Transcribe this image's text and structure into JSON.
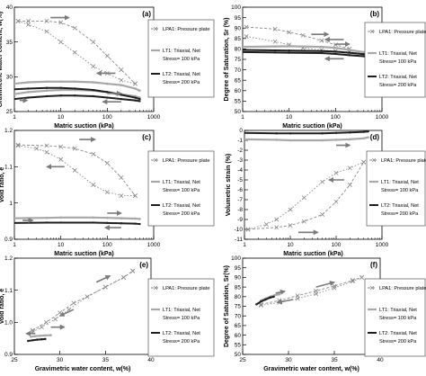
{
  "colors": {
    "lpa1": "#8a8a8a",
    "lt1": "#a8a8a8",
    "lt2": "#1e1e1e",
    "arrow": "#7a7a7a",
    "axis": "#000000",
    "box": "#555555"
  },
  "legend": {
    "lpa1": "LPA1: Pressure plate",
    "lt1_l1": "LT1: Triaxial, Net",
    "lt1_l2": "Stress= 100 kPa",
    "lt2_l1": "LT2: Triaxial, Net",
    "lt2_l2": "Stress= 200 kPa"
  },
  "chart_data": [
    {
      "panel": "(a)",
      "type": "line",
      "xscale": "log",
      "xlim": [
        1,
        1000
      ],
      "ylim": [
        25,
        40
      ],
      "xticks": [
        1,
        10,
        100,
        1000
      ],
      "yticks": [
        25,
        30,
        35,
        40
      ],
      "xlabel": "Matric suction (kPa)",
      "ylabel": "Gravimetric water content, w(%)",
      "legend_placement": "right",
      "series": [
        {
          "name": "LPA1: Pressure plate",
          "style": "lpa1_a",
          "x": [
            1.2,
            2,
            5,
            10,
            20,
            50,
            100,
            200,
            400
          ],
          "y": [
            38,
            38,
            38,
            37.8,
            37,
            35,
            33,
            31,
            29
          ]
        },
        {
          "name": "LPA1: Pressure plate",
          "style": "lpa1_b",
          "x": [
            1.2,
            2,
            5,
            10,
            20,
            50,
            100,
            200,
            400
          ],
          "y": [
            38,
            37.5,
            36.5,
            35,
            33.5,
            31.5,
            30.5,
            29.5,
            29
          ]
        },
        {
          "name": "LT1: Triaxial, Net Stress= 100 kPa",
          "style": "lt1",
          "x": [
            1,
            2,
            5,
            10,
            20,
            50,
            100,
            200,
            400,
            500
          ],
          "y": [
            29,
            29.2,
            29.3,
            29.3,
            29.3,
            29.2,
            29,
            28.8,
            28.3,
            28
          ]
        },
        {
          "name": "LT1: Triaxial, Net Stress= 100 kPa",
          "style": "lt1",
          "x": [
            1,
            2,
            5,
            10,
            20,
            50,
            100,
            200,
            400,
            500
          ],
          "y": [
            27.5,
            27.8,
            28,
            28.1,
            28.1,
            28,
            27.8,
            27.5,
            27.2,
            27
          ]
        },
        {
          "name": "LT2: Triaxial, Net Stress= 200 kPa",
          "style": "lt2",
          "x": [
            1,
            2,
            5,
            10,
            20,
            50,
            100,
            200,
            400,
            500
          ],
          "y": [
            28.2,
            28.3,
            28.4,
            28.4,
            28.3,
            28.1,
            27.8,
            27.4,
            27,
            26.8
          ]
        },
        {
          "name": "LT2: Triaxial, Net Stress= 200 kPa",
          "style": "lt2",
          "x": [
            1,
            2,
            5,
            10,
            20,
            50,
            100,
            200,
            400,
            500
          ],
          "y": [
            26.8,
            27,
            27.2,
            27.3,
            27.3,
            27.2,
            27,
            26.8,
            26.6,
            26.5
          ]
        }
      ],
      "arrows": [
        {
          "x1": 6,
          "y1": 38.5,
          "x2": 15,
          "y2": 38.5
        },
        {
          "x1": 150,
          "y1": 30.5,
          "x2": 60,
          "y2": 30.5
        },
        {
          "x1": 100,
          "y1": 27.6,
          "x2": 200,
          "y2": 27.6
        },
        {
          "x1": 200,
          "y1": 26.4,
          "x2": 80,
          "y2": 26.4
        },
        {
          "x1": 1.3,
          "y1": 26.6,
          "x2": 1.9,
          "y2": 26.6
        }
      ]
    },
    {
      "panel": "(b)",
      "type": "line",
      "xscale": "log",
      "xlim": [
        1,
        1000
      ],
      "ylim": [
        50,
        100
      ],
      "xticks": [
        1,
        10,
        100,
        1000
      ],
      "yticks": [
        50,
        55,
        60,
        65,
        70,
        75,
        80,
        85,
        90,
        95,
        100
      ],
      "xlabel": "Matric suction (kPa)",
      "ylabel": "Degree of Saturation, Sr (%)",
      "legend_placement": "right",
      "series": [
        {
          "name": "LPA1: Pressure plate",
          "style": "lpa1_a",
          "x": [
            1.2,
            5,
            10,
            20,
            50,
            100,
            200,
            400
          ],
          "y": [
            90.5,
            89.5,
            88,
            86.5,
            84,
            82,
            80,
            78
          ]
        },
        {
          "name": "LPA1: Pressure plate",
          "style": "lpa1_b",
          "x": [
            1.2,
            5,
            10,
            20,
            50,
            100,
            200,
            400
          ],
          "y": [
            86,
            83.5,
            82,
            80.5,
            79.5,
            79,
            78.5,
            78
          ]
        },
        {
          "name": "LT1: Triaxial, Net Stress= 100 kPa",
          "style": "lt1",
          "x": [
            1,
            5,
            10,
            50,
            100,
            200,
            400,
            500
          ],
          "y": [
            81,
            81.2,
            81.3,
            81,
            80.5,
            79.5,
            78.5,
            78
          ]
        },
        {
          "name": "LT2: Triaxial, Net Stress= 200 kPa",
          "style": "lt2",
          "x": [
            1,
            5,
            10,
            50,
            100,
            200,
            400,
            500
          ],
          "y": [
            79.5,
            79.3,
            79.2,
            79,
            78.7,
            78.2,
            77.5,
            77
          ]
        },
        {
          "name": "LT2: Triaxial, Net Stress= 200 kPa",
          "style": "lt2",
          "x": [
            1,
            5,
            10,
            50,
            100,
            200,
            400,
            500
          ],
          "y": [
            78.5,
            78.3,
            78.2,
            78,
            77.6,
            77,
            76.5,
            76
          ]
        }
      ],
      "arrows": [
        {
          "x1": 30,
          "y1": 87,
          "x2": 70,
          "y2": 87
        },
        {
          "x1": 150,
          "y1": 84.5,
          "x2": 60,
          "y2": 84.5
        },
        {
          "x1": 100,
          "y1": 82.3,
          "x2": 200,
          "y2": 82.3
        },
        {
          "x1": 150,
          "y1": 75.3,
          "x2": 60,
          "y2": 75.3
        }
      ]
    },
    {
      "panel": "(c)",
      "type": "line",
      "xscale": "log",
      "xlim": [
        1,
        1000
      ],
      "ylim": [
        0.9,
        1.2
      ],
      "xticks": [
        1,
        10,
        100,
        1000
      ],
      "yticks": [
        0.9,
        1.0,
        1.1,
        1.2
      ],
      "xlabel": "Matric suction (kPa)",
      "ylabel": "Void ratio, e",
      "legend_placement": "right",
      "series": [
        {
          "name": "LPA1: Pressure plate",
          "style": "lpa1_a",
          "x": [
            1.2,
            5,
            10,
            20,
            50,
            100,
            200,
            400
          ],
          "y": [
            1.16,
            1.158,
            1.155,
            1.15,
            1.135,
            1.11,
            1.07,
            1.02
          ]
        },
        {
          "name": "LPA1: Pressure plate",
          "style": "lpa1_b",
          "x": [
            1.2,
            3,
            5,
            10,
            20,
            50,
            100,
            200,
            400
          ],
          "y": [
            1.158,
            1.15,
            1.14,
            1.12,
            1.09,
            1.05,
            1.03,
            1.02,
            1.02
          ]
        },
        {
          "name": "LT1: Triaxial, Net Stress= 100 kPa",
          "style": "lt1",
          "x": [
            1,
            5,
            10,
            50,
            100,
            200,
            400,
            500
          ],
          "y": [
            0.958,
            0.959,
            0.96,
            0.96,
            0.959,
            0.958,
            0.957,
            0.956
          ]
        },
        {
          "name": "LT2: Triaxial, Net Stress= 200 kPa",
          "style": "lt2",
          "x": [
            1,
            5,
            10,
            50,
            100,
            200,
            400,
            500
          ],
          "y": [
            0.945,
            0.946,
            0.946,
            0.946,
            0.945,
            0.944,
            0.943,
            0.942
          ]
        }
      ],
      "arrows": [
        {
          "x1": 25,
          "y1": 1.175,
          "x2": 55,
          "y2": 1.175
        },
        {
          "x1": 12,
          "y1": 1.1,
          "x2": 5,
          "y2": 1.1
        },
        {
          "x1": 100,
          "y1": 0.972,
          "x2": 200,
          "y2": 0.972
        },
        {
          "x1": 1.5,
          "y1": 0.952,
          "x2": 2.5,
          "y2": 0.952
        },
        {
          "x1": 200,
          "y1": 0.932,
          "x2": 90,
          "y2": 0.932
        }
      ]
    },
    {
      "panel": "(d)",
      "type": "line",
      "xscale": "log",
      "xlim": [
        1,
        1000
      ],
      "ylim": [
        -11,
        0
      ],
      "xticks": [
        1,
        10,
        100,
        1000
      ],
      "yticks": [
        -11,
        -10,
        -9,
        -8,
        -7,
        -6,
        -5,
        -4,
        -3,
        -2,
        -1,
        0
      ],
      "xlabel": "Matric suction (kPa)",
      "ylabel": "Volumetric strain (%)",
      "legend_placement": "right",
      "series": [
        {
          "name": "LPA1: Pressure plate",
          "style": "lpa1_a",
          "x": [
            1.2,
            5,
            10,
            20,
            50,
            100,
            200,
            400
          ],
          "y": [
            -10,
            -9.8,
            -9.6,
            -9.2,
            -8.5,
            -7.2,
            -5.5,
            -3.2
          ]
        },
        {
          "name": "LPA1: Pressure plate",
          "style": "lpa1_b",
          "x": [
            1.2,
            3,
            5,
            10,
            20,
            50,
            100,
            200,
            400
          ],
          "y": [
            -10,
            -9.5,
            -9,
            -8,
            -6.8,
            -5.2,
            -4.3,
            -3.8,
            -3.2
          ]
        },
        {
          "name": "LT1: Triaxial, Net Stress= 100 kPa",
          "style": "lt1",
          "x": [
            1,
            5,
            10,
            50,
            100,
            200,
            400,
            500
          ],
          "y": [
            -0.9,
            -0.95,
            -1,
            -1,
            -0.95,
            -0.9,
            -0.8,
            -0.7
          ]
        },
        {
          "name": "LT2: Triaxial, Net Stress= 200 kPa",
          "style": "lt2",
          "x": [
            1,
            5,
            10,
            50,
            100,
            200,
            400,
            500
          ],
          "y": [
            -0.25,
            -0.3,
            -0.3,
            -0.3,
            -0.25,
            -0.2,
            -0.15,
            -0.1
          ]
        }
      ],
      "arrows": [
        {
          "x1": 15,
          "y1": -10.3,
          "x2": 40,
          "y2": -10.3
        },
        {
          "x1": 150,
          "y1": -5.0,
          "x2": 70,
          "y2": -5.0
        },
        {
          "x1": 100,
          "y1": -1.5,
          "x2": 200,
          "y2": -1.5
        },
        {
          "x1": 200,
          "y1": 0.35,
          "x2": 90,
          "y2": 0.35
        }
      ]
    },
    {
      "panel": "(e)",
      "type": "line",
      "xscale": "linear",
      "xlim": [
        25,
        40
      ],
      "ylim": [
        0.9,
        1.2
      ],
      "xticks": [
        25,
        30,
        35,
        40
      ],
      "yticks": [
        0.9,
        1.0,
        1.1,
        1.2
      ],
      "xlabel": "Gravimetric water content, w(%)",
      "ylabel": "Void ratio, e",
      "legend_placement": "right",
      "series": [
        {
          "name": "LPA1: Pressure plate",
          "style": "lpa1_a",
          "x": [
            27,
            28.5,
            30,
            31.5,
            33,
            35,
            37,
            38
          ],
          "y": [
            0.975,
            1.0,
            1.03,
            1.06,
            1.08,
            1.11,
            1.14,
            1.16
          ]
        },
        {
          "name": "LPA1: Pressure plate",
          "style": "lpa1_b",
          "x": [
            27,
            28,
            29.5,
            31,
            33,
            35,
            37,
            38
          ],
          "y": [
            0.97,
            0.985,
            1.01,
            1.04,
            1.08,
            1.11,
            1.14,
            1.16
          ]
        },
        {
          "name": "LT1: Triaxial, Net Stress= 100 kPa",
          "style": "lt1",
          "x": [
            26.8,
            27.3,
            27.8,
            28.3,
            29
          ],
          "y": [
            0.955,
            0.957,
            0.958,
            0.959,
            0.96
          ]
        },
        {
          "name": "LT2: Triaxial, Net Stress= 200 kPa",
          "style": "lt2",
          "x": [
            26.5,
            27,
            27.5,
            28,
            28.4
          ],
          "y": [
            0.942,
            0.944,
            0.946,
            0.947,
            0.948
          ]
        }
      ],
      "arrows": [
        {
          "x1": 34,
          "y1": 1.125,
          "x2": 35.5,
          "y2": 1.145
        },
        {
          "x1": 31.5,
          "y1": 1.04,
          "x2": 30,
          "y2": 1.02
        },
        {
          "x1": 29,
          "y1": 0.985,
          "x2": 30.5,
          "y2": 0.985
        },
        {
          "x1": 27.3,
          "y1": 0.965,
          "x2": 26.3,
          "y2": 0.965
        }
      ]
    },
    {
      "panel": "(f)",
      "type": "line",
      "xscale": "linear",
      "xlim": [
        25,
        40
      ],
      "ylim": [
        50,
        100
      ],
      "xticks": [
        25,
        30,
        35,
        40
      ],
      "yticks": [
        50,
        55,
        60,
        65,
        70,
        75,
        80,
        85,
        90,
        95,
        100
      ],
      "xlabel": "Gravimetric water content, w(%)",
      "ylabel": "Degree of Saturation, Sr(%)",
      "legend_placement": "right",
      "series": [
        {
          "name": "LPA1: Pressure plate",
          "style": "lpa1_a",
          "x": [
            27,
            29,
            31,
            33,
            35,
            37,
            38
          ],
          "y": [
            76,
            78,
            80.5,
            83,
            85.5,
            88.5,
            90
          ]
        },
        {
          "name": "LPA1: Pressure plate",
          "style": "lpa1_b",
          "x": [
            27,
            29,
            31,
            33,
            35,
            37,
            38
          ],
          "y": [
            75.5,
            77,
            79,
            81.5,
            84.5,
            88,
            90
          ]
        },
        {
          "name": "LT1: Triaxial, Net Stress= 100 kPa",
          "style": "lt1",
          "x": [
            27,
            27.5,
            28,
            28.5,
            29
          ],
          "y": [
            78,
            79,
            80,
            80.8,
            81.2
          ]
        },
        {
          "name": "LT2: Triaxial, Net Stress= 200 kPa",
          "style": "lt2",
          "x": [
            26.5,
            27,
            27.5,
            28,
            28.4
          ],
          "y": [
            76,
            77.5,
            78.5,
            79.5,
            80
          ]
        }
      ],
      "arrows": [
        {
          "x1": 33,
          "y1": 85,
          "x2": 35,
          "y2": 87.5
        },
        {
          "x1": 30.5,
          "y1": 78.5,
          "x2": 28.8,
          "y2": 77
        },
        {
          "x1": 28.6,
          "y1": 81.8,
          "x2": 29.6,
          "y2": 82.8
        }
      ]
    }
  ]
}
